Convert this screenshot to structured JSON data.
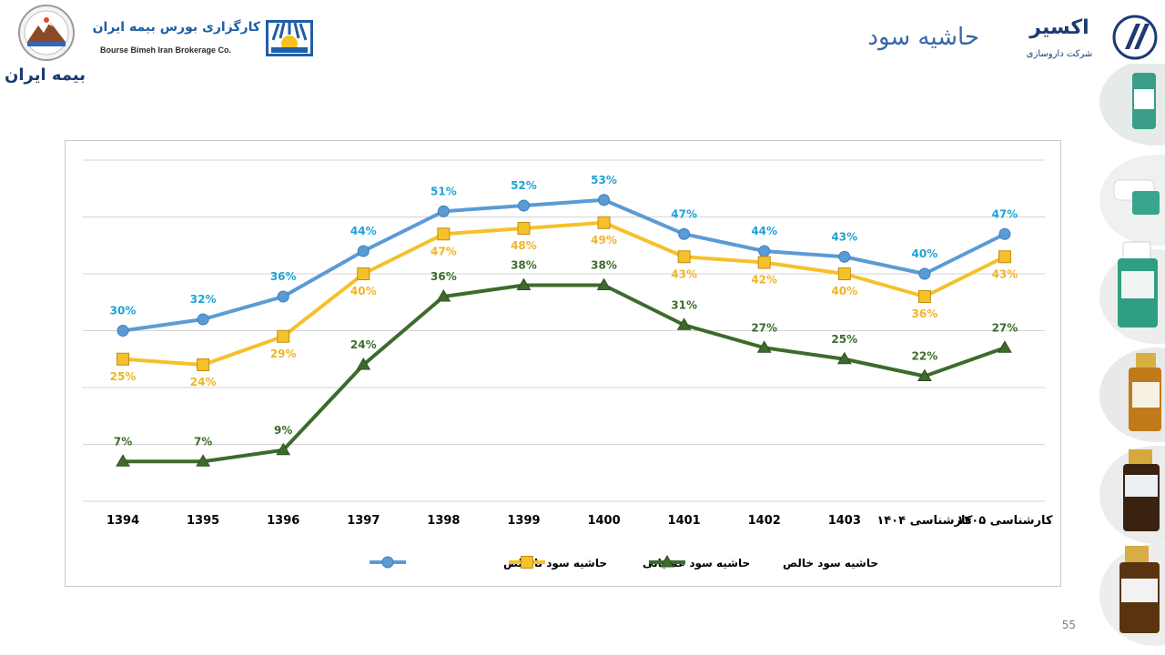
{
  "header": {
    "title": "حاشیه سود",
    "broker_name_fa": "کارگزاری بورس بیمه ایران",
    "broker_name_en": "Bourse Bimeh Iran Brokerage Co.",
    "insurer_name_fa": "بیمه ایران",
    "company_name_fa": "اکسیر",
    "company_sub_fa": "شرکت داروسازی"
  },
  "page_number": "55",
  "colors": {
    "gross": "#5b9bd5",
    "gross_label": "#1fa3d8",
    "operating": "#f5c02a",
    "operating_label": "#f0b428",
    "net": "#3e6b2c",
    "net_label": "#3e6b2c",
    "title": "#3a66a8"
  },
  "chart_data": {
    "type": "line",
    "categories": [
      "1394",
      "1395",
      "1396",
      "1397",
      "1398",
      "1399",
      "1400",
      "1401",
      "1402",
      "1403",
      "کارشناسی ۱۴۰۴",
      "کارشناسی ۱۴۰۵"
    ],
    "series": [
      {
        "name": "حاشیه سود ناخالص",
        "marker": "circle",
        "values": [
          30,
          32,
          36,
          44,
          51,
          52,
          53,
          47,
          44,
          43,
          40,
          47
        ],
        "labels": [
          "30%",
          "32%",
          "36%",
          "44%",
          "51%",
          "52%",
          "53%",
          "47%",
          "44%",
          "43%",
          "40%",
          "47%"
        ]
      },
      {
        "name": "حاشیه سود عملیاتی",
        "marker": "square",
        "values": [
          25,
          24,
          29,
          40,
          47,
          48,
          49,
          43,
          42,
          40,
          36,
          43
        ],
        "labels": [
          "25%",
          "24%",
          "29%",
          "40%",
          "47%",
          "48%",
          "49%",
          "43%",
          "42%",
          "40%",
          "36%",
          "43%"
        ]
      },
      {
        "name": "حاشیه سود خالص",
        "marker": "triangle",
        "values": [
          7,
          7,
          9,
          24,
          36,
          38,
          38,
          31,
          27,
          25,
          22,
          27
        ],
        "labels": [
          "7%",
          "7%",
          "9%",
          "24%",
          "36%",
          "38%",
          "38%",
          "31%",
          "27%",
          "25%",
          "22%",
          "27%"
        ]
      }
    ],
    "ylim": [
      0,
      60
    ],
    "yticks": [
      0,
      10,
      20,
      30,
      40,
      50,
      60
    ],
    "grid": true,
    "legend_position": "bottom",
    "show_y_tick_labels": false
  }
}
